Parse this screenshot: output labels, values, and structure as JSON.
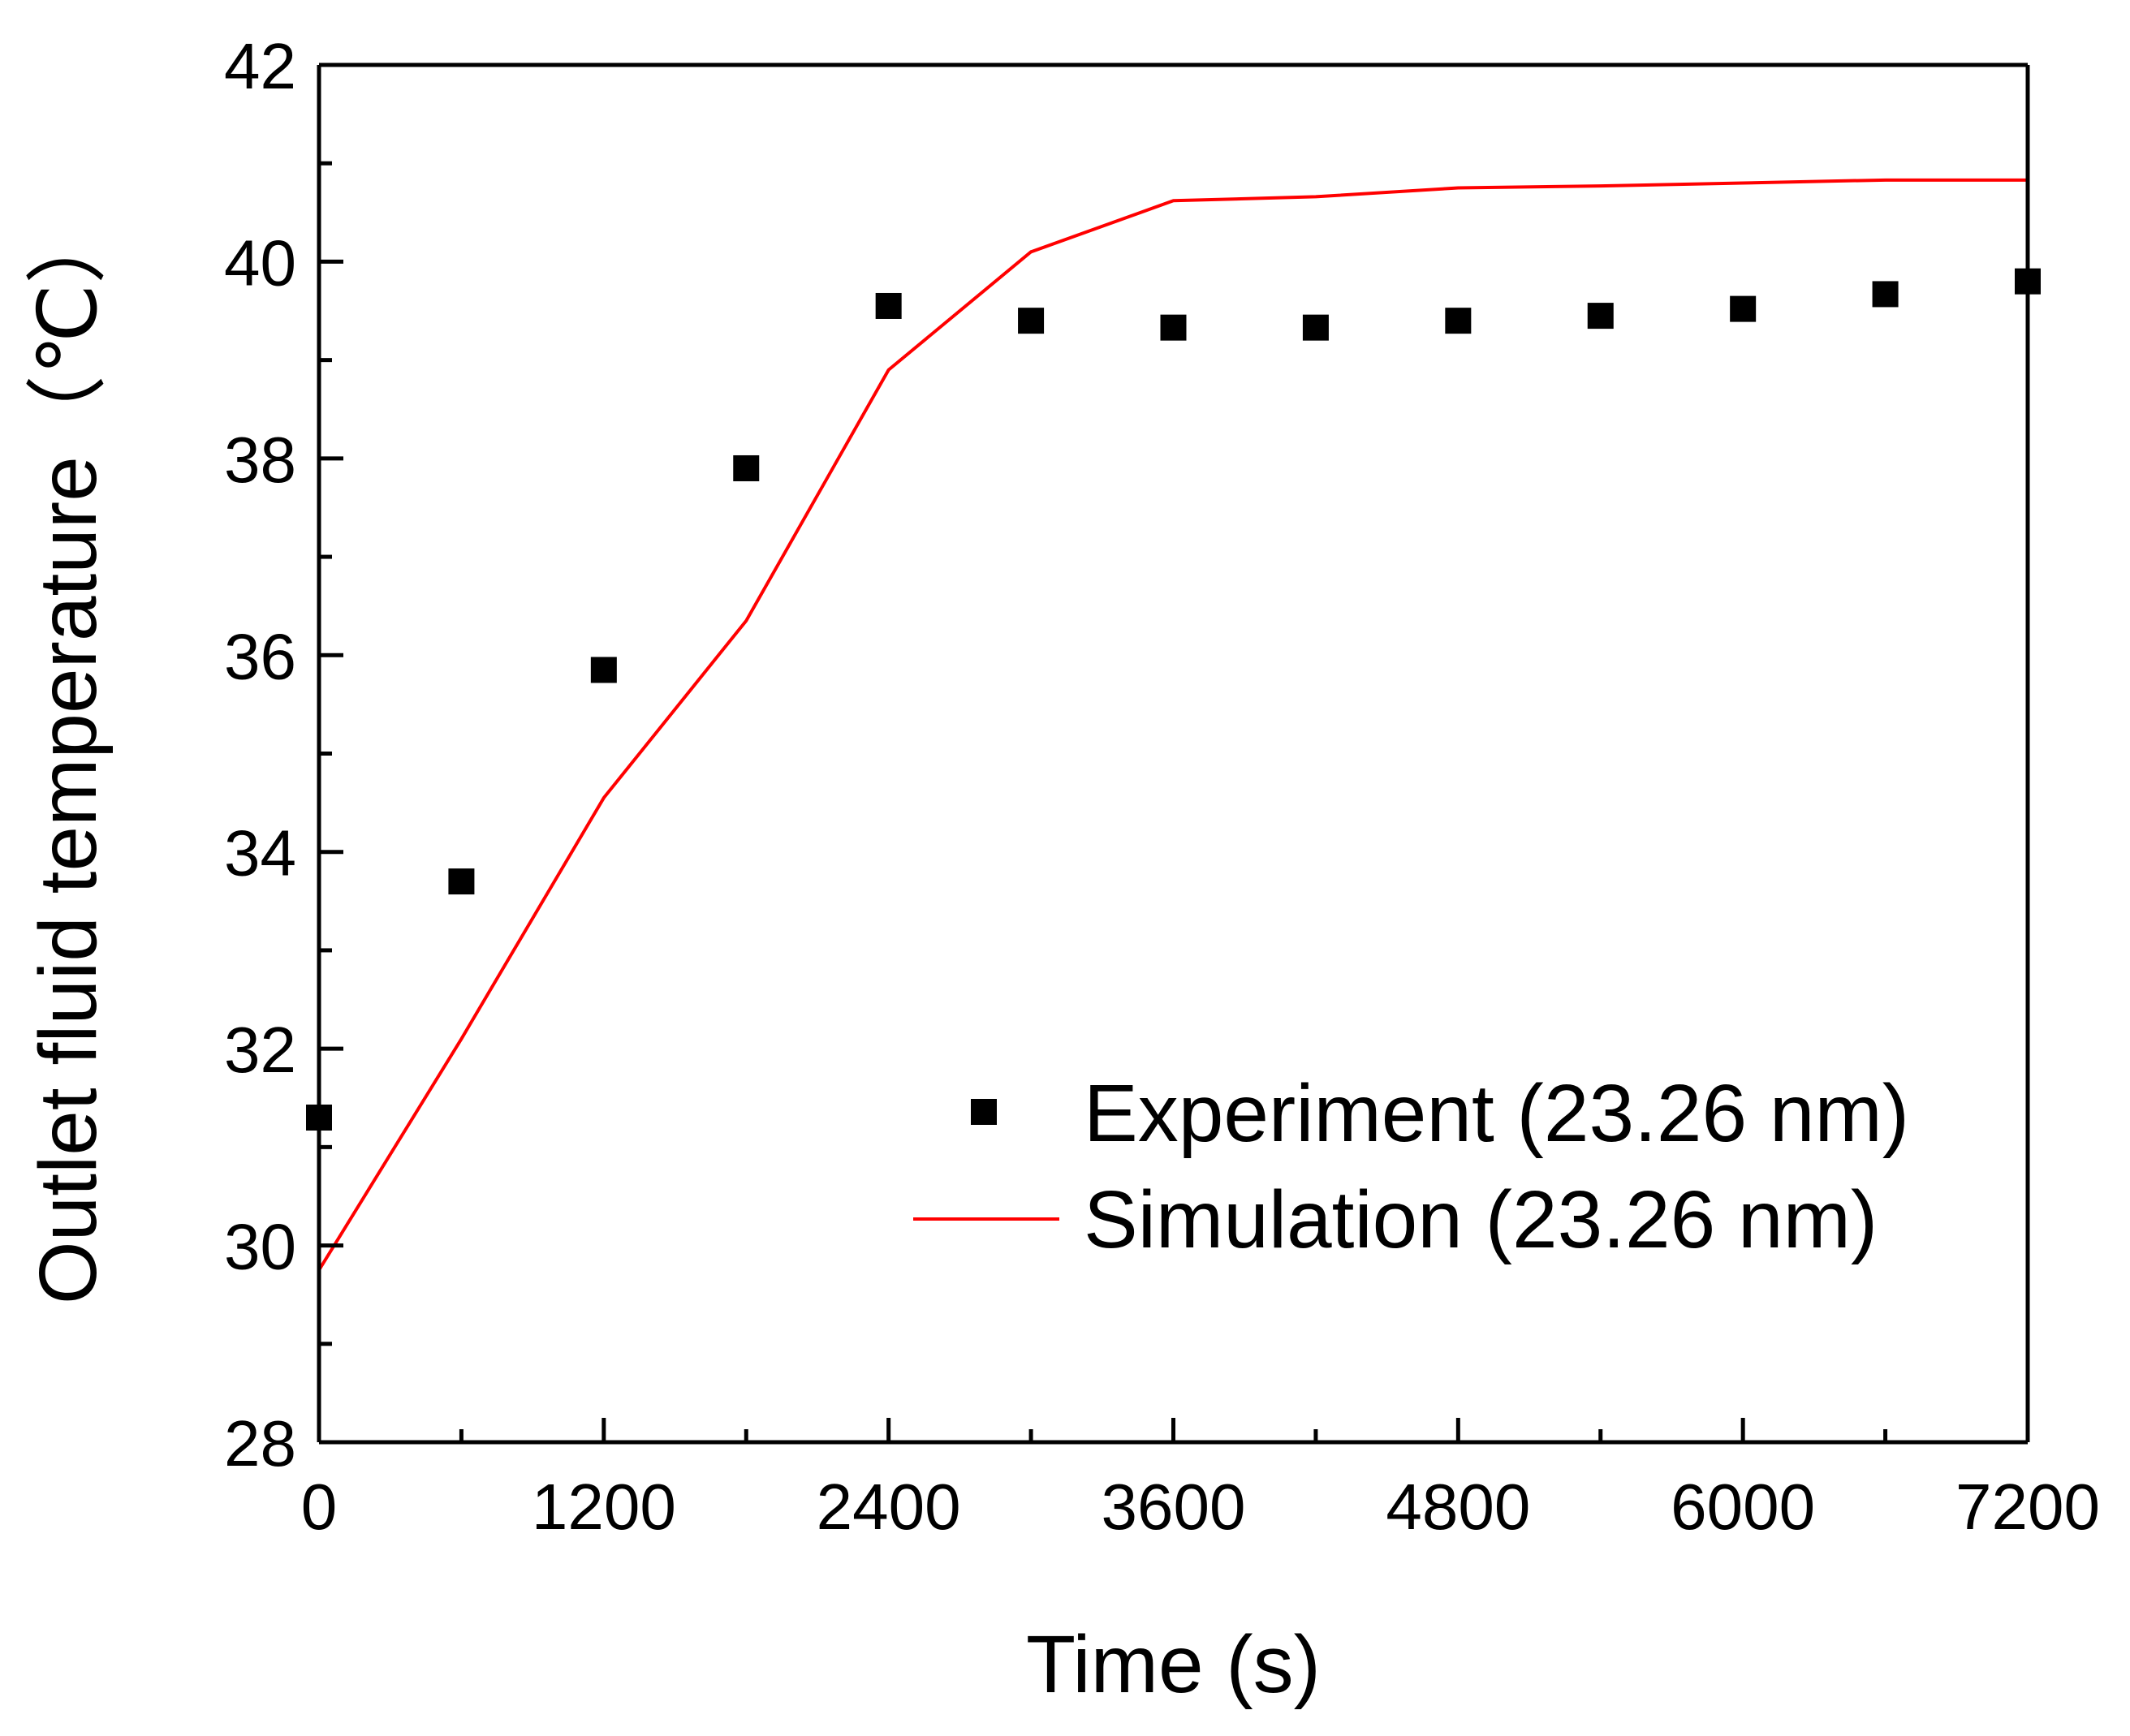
{
  "chart_data": {
    "type": "line",
    "title": "",
    "xlabel": "Time (s)",
    "ylabel": "Outlet fluid temperature（℃）",
    "xlim": [
      0,
      7200
    ],
    "ylim": [
      28,
      42
    ],
    "xticks": [
      0,
      1200,
      2400,
      3600,
      4800,
      6000,
      7200
    ],
    "yticks": [
      28,
      30,
      32,
      34,
      36,
      38,
      40,
      42
    ],
    "xtick_labels": [
      "0",
      "1200",
      "2400",
      "3600",
      "4800",
      "6000",
      "7200"
    ],
    "ytick_labels": [
      "28",
      "30",
      "32",
      "34",
      "36",
      "38",
      "40",
      "42"
    ],
    "legend_position": "lower-right",
    "series": [
      {
        "name": "Experiment (23.26 nm)",
        "kind": "scatter",
        "marker": "square",
        "color": "#000000",
        "x": [
          0,
          600,
          1200,
          1800,
          2400,
          3000,
          3600,
          4200,
          4800,
          5400,
          6000,
          6600,
          7200
        ],
        "y": [
          31.3,
          33.7,
          35.85,
          37.9,
          39.55,
          39.4,
          39.33,
          39.33,
          39.4,
          39.45,
          39.52,
          39.67,
          39.8
        ]
      },
      {
        "name": "Simulation (23.26 nm)",
        "kind": "line",
        "color": "#ff0000",
        "x": [
          0,
          600,
          1200,
          1800,
          2400,
          3000,
          3600,
          4200,
          4800,
          5400,
          6000,
          6600,
          7200
        ],
        "y": [
          29.75,
          32.1,
          34.55,
          36.35,
          38.9,
          40.1,
          40.62,
          40.66,
          40.75,
          40.77,
          40.8,
          40.83,
          40.83
        ]
      }
    ]
  }
}
